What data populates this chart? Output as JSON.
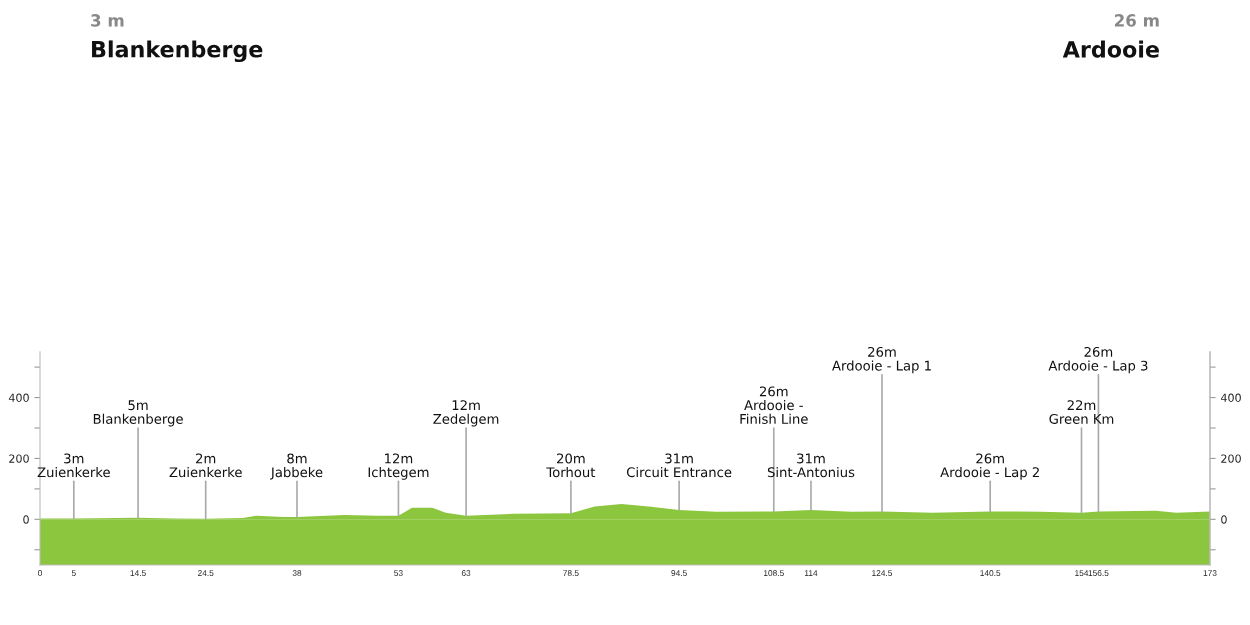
{
  "chart_data": {
    "type": "area",
    "title": "Blankenberge",
    "subtitle": "3 m",
    "x": [
      0,
      5,
      14.5,
      20,
      24.5,
      30,
      32,
      36,
      38,
      45,
      50,
      53,
      55,
      58,
      60,
      63,
      70,
      78.5,
      82,
      86,
      90,
      94.5,
      100,
      108.5,
      114,
      120,
      124.5,
      132,
      140.5,
      148,
      154,
      156.5,
      165,
      168,
      173
    ],
    "values": [
      3,
      3,
      5,
      3,
      2,
      4,
      12,
      8,
      8,
      14,
      12,
      12,
      38,
      38,
      22,
      12,
      18,
      20,
      42,
      50,
      42,
      31,
      25,
      26,
      31,
      25,
      26,
      22,
      26,
      25,
      22,
      26,
      28,
      22,
      26
    ],
    "color": "#8cc63f",
    "xlim": [
      0,
      173
    ],
    "xticks": [
      0,
      5,
      14.5,
      24.5,
      38,
      53,
      63,
      78.5,
      94.5,
      108.5,
      114,
      124.5,
      140.5,
      154,
      156.5,
      173
    ],
    "ylim": [
      -150,
      550
    ],
    "yticks": [
      {
        "value": -100,
        "label": null
      },
      0,
      {
        "value": 100,
        "label": null
      },
      200,
      {
        "value": 300,
        "label": null
      },
      400,
      {
        "value": 500,
        "label": null
      }
    ],
    "y2lim": [
      -150,
      550
    ],
    "y2ticks": [
      {
        "value": -100,
        "label": null
      },
      0,
      {
        "value": 100,
        "label": null
      },
      200,
      {
        "value": 300,
        "label": null
      },
      400,
      {
        "value": 500,
        "label": null
      }
    ],
    "grid": false,
    "legend": false,
    "annotations": [
      "26 m",
      "Ardooie",
      {
        "text": "3m\nZuienkerke",
        "x": 5,
        "y": 3
      },
      {
        "text": "5m\nBlankenberge",
        "x": 14.5,
        "y": 5
      },
      {
        "text": "2m\nZuienkerke",
        "x": 24.5,
        "y": 2
      },
      {
        "text": "8m\nJabbeke",
        "x": 38,
        "y": 8
      },
      {
        "text": "12m\nIchtegem",
        "x": 53,
        "y": 12
      },
      {
        "text": "12m\nZedelgem",
        "x": 63,
        "y": 12
      },
      {
        "text": "20m\nTorhout",
        "x": 78.5,
        "y": 20
      },
      {
        "text": "31m\nCircuit Entrance",
        "x": 94.5,
        "y": 31
      },
      {
        "text": "26m\nArdooie -\nFinish Line",
        "x": 108.5,
        "y": 26
      },
      {
        "text": "31m\nSint-Antonius",
        "x": 114,
        "y": 31
      },
      {
        "text": "26m\nArdooie - Lap 1",
        "x": 124.5,
        "y": 26
      },
      {
        "text": "26m\nArdooie - Lap 2",
        "x": 140.5,
        "y": 26
      },
      {
        "text": "22m\nGreen Km",
        "x": 154,
        "y": 22
      },
      {
        "text": "26m\nArdooie - Lap 3",
        "x": 156.5,
        "y": 26
      }
    ]
  }
}
